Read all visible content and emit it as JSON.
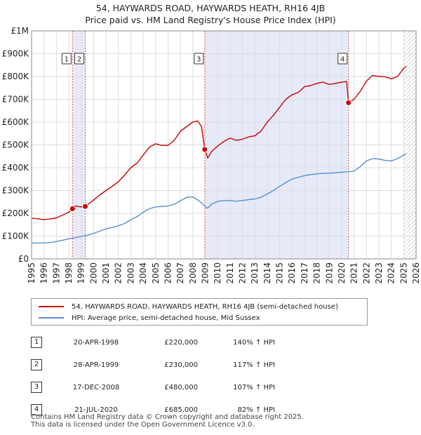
{
  "title": {
    "line1": "54, HAYWARDS ROAD, HAYWARDS HEATH, RH16 4JB",
    "line2": "Price paid vs. HM Land Registry's House Price Index (HPI)"
  },
  "chart_data": {
    "type": "line",
    "title": "54, HAYWARDS ROAD, HAYWARDS HEATH, RH16 4JB — Price paid vs. HM Land Registry's House Price Index (HPI)",
    "xlim": [
      1995,
      2026
    ],
    "ylim": [
      0,
      1000000
    ],
    "x_ticks": [
      "1995",
      "1996",
      "1997",
      "1998",
      "1999",
      "2000",
      "2001",
      "2002",
      "2003",
      "2004",
      "2005",
      "2006",
      "2007",
      "2008",
      "2009",
      "2010",
      "2011",
      "2012",
      "2013",
      "2014",
      "2015",
      "2016",
      "2017",
      "2018",
      "2019",
      "2020",
      "2021",
      "2022",
      "2023",
      "2024",
      "2025",
      "2026"
    ],
    "y_ticks": [
      {
        "value": 0,
        "label": "£0"
      },
      {
        "value": 100000,
        "label": "£100K"
      },
      {
        "value": 200000,
        "label": "£200K"
      },
      {
        "value": 300000,
        "label": "£300K"
      },
      {
        "value": 400000,
        "label": "£400K"
      },
      {
        "value": 500000,
        "label": "£500K"
      },
      {
        "value": 600000,
        "label": "£600K"
      },
      {
        "value": 700000,
        "label": "£700K"
      },
      {
        "value": 800000,
        "label": "£800K"
      },
      {
        "value": 900000,
        "label": "£900K"
      },
      {
        "value": 1000000,
        "label": "£1M"
      }
    ],
    "shaded_spans": [
      {
        "from": 1998.3,
        "to": 1999.33,
        "color": "#e6eaf8"
      },
      {
        "from": 2008.96,
        "to": 2020.55,
        "color": "#e6eaf8"
      }
    ],
    "hatched_from": 2025.0,
    "series": [
      {
        "name": "54, HAYWARDS ROAD, HAYWARDS HEATH, RH16 4JB (semi-detached house)",
        "color": "#cc0000",
        "x": [
          1995.0,
          1995.5,
          1996.0,
          1996.5,
          1997.0,
          1997.5,
          1998.0,
          1998.3,
          1998.5,
          1999.0,
          1999.33,
          1999.6,
          2000.0,
          2000.5,
          2001.0,
          2001.5,
          2002.0,
          2002.5,
          2003.0,
          2003.5,
          2004.0,
          2004.5,
          2005.0,
          2005.5,
          2006.0,
          2006.5,
          2007.0,
          2007.5,
          2008.0,
          2008.4,
          2008.7,
          2008.96,
          2009.1,
          2009.2,
          2009.5,
          2010.0,
          2010.5,
          2011.0,
          2011.5,
          2012.0,
          2012.5,
          2013.0,
          2013.5,
          2014.0,
          2014.5,
          2015.0,
          2015.5,
          2016.0,
          2016.5,
          2017.0,
          2017.5,
          2018.0,
          2018.5,
          2019.0,
          2019.5,
          2020.0,
          2020.4,
          2020.55,
          2020.7,
          2021.0,
          2021.5,
          2022.0,
          2022.5,
          2023.0,
          2023.5,
          2024.0,
          2024.5,
          2025.0,
          2025.2
        ],
        "values": [
          178000,
          176000,
          172000,
          175000,
          180000,
          192000,
          205000,
          220000,
          232000,
          228000,
          230000,
          242000,
          258000,
          280000,
          300000,
          318000,
          338000,
          368000,
          400000,
          420000,
          455000,
          490000,
          505000,
          498000,
          498000,
          520000,
          560000,
          580000,
          600000,
          605000,
          580000,
          480000,
          460000,
          442000,
          470000,
          495000,
          515000,
          530000,
          520000,
          525000,
          535000,
          540000,
          560000,
          600000,
          630000,
          665000,
          700000,
          720000,
          730000,
          755000,
          760000,
          770000,
          775000,
          765000,
          770000,
          775000,
          778000,
          685000,
          690000,
          700000,
          735000,
          780000,
          805000,
          800000,
          798000,
          790000,
          800000,
          835000,
          845000
        ]
      },
      {
        "name": "HPI: Average price, semi-detached house, Mid Sussex",
        "color": "#5b8ec8",
        "x": [
          1995.0,
          1995.5,
          1996.0,
          1996.5,
          1997.0,
          1997.5,
          1998.0,
          1998.5,
          1999.0,
          1999.5,
          2000.0,
          2000.5,
          2001.0,
          2001.5,
          2002.0,
          2002.5,
          2003.0,
          2003.5,
          2004.0,
          2004.5,
          2005.0,
          2005.5,
          2006.0,
          2006.5,
          2007.0,
          2007.5,
          2008.0,
          2008.5,
          2008.96,
          2009.2,
          2009.5,
          2010.0,
          2010.5,
          2011.0,
          2011.5,
          2012.0,
          2012.5,
          2013.0,
          2013.5,
          2014.0,
          2014.5,
          2015.0,
          2015.5,
          2016.0,
          2016.5,
          2017.0,
          2017.5,
          2018.0,
          2018.5,
          2019.0,
          2019.5,
          2020.0,
          2020.5,
          2021.0,
          2021.5,
          2022.0,
          2022.5,
          2023.0,
          2023.5,
          2024.0,
          2024.5,
          2025.0,
          2025.2
        ],
        "values": [
          70000,
          69000,
          70000,
          72000,
          76000,
          82000,
          88000,
          93000,
          98000,
          104000,
          112000,
          122000,
          132000,
          138000,
          145000,
          155000,
          172000,
          185000,
          205000,
          220000,
          228000,
          230000,
          232000,
          240000,
          255000,
          270000,
          272000,
          255000,
          232000,
          222000,
          240000,
          252000,
          256000,
          256000,
          253000,
          256000,
          260000,
          263000,
          270000,
          285000,
          300000,
          318000,
          335000,
          350000,
          358000,
          365000,
          370000,
          373000,
          375000,
          376000,
          378000,
          380000,
          382000,
          385000,
          405000,
          430000,
          440000,
          438000,
          432000,
          430000,
          440000,
          455000,
          462000
        ]
      }
    ],
    "sales": [
      {
        "label": "1",
        "x": 1998.3,
        "value": 220000
      },
      {
        "label": "2",
        "x": 1999.33,
        "value": 230000
      },
      {
        "label": "3",
        "x": 2008.96,
        "value": 480000
      },
      {
        "label": "4",
        "x": 2020.55,
        "value": 685000
      }
    ]
  },
  "legend": {
    "property_label": "54, HAYWARDS ROAD, HAYWARDS HEATH, RH16 4JB (semi-detached house)",
    "hpi_label": "HPI: Average price, semi-detached house, Mid Sussex"
  },
  "transactions": [
    {
      "num": "1",
      "date": "20-APR-1998",
      "price": "£220,000",
      "hpi": "140% ↑ HPI"
    },
    {
      "num": "2",
      "date": "28-APR-1999",
      "price": "£230,000",
      "hpi": "117% ↑ HPI"
    },
    {
      "num": "3",
      "date": "17-DEC-2008",
      "price": "£480,000",
      "hpi": "107% ↑ HPI"
    },
    {
      "num": "4",
      "date": "21-JUL-2020",
      "price": "£685,000",
      "hpi": "82% ↑ HPI"
    }
  ],
  "footer": {
    "line1": "Contains HM Land Registry data © Crown copyright and database right 2025.",
    "line2": "This data is licensed under the Open Government Licence v3.0."
  }
}
